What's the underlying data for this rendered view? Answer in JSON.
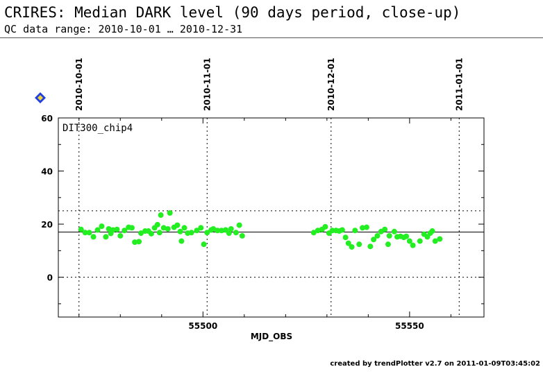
{
  "header": {
    "title": "CRIRES: Median DARK level (90 days period, close-up)",
    "subtitle": "QC data range: 2010-10-01 … 2010-12-31"
  },
  "footer": {
    "text": "created by trendPlotter v2.7 on 2011-01-09T03:45:02"
  },
  "colors": {
    "points": "#22ee22",
    "axes": "#000000",
    "marker": "#1f3fe0",
    "marker_fill": "#f2d23a"
  },
  "icon": "diamond-marker-icon",
  "chart_data": {
    "type": "scatter",
    "xlabel": "MJD_OBS",
    "ylabel": "",
    "xlim": [
      55465.0,
      55568.0
    ],
    "ylim": [
      -15,
      60
    ],
    "yticks": [
      0,
      20,
      40,
      60
    ],
    "xticks": [
      55500.0,
      55550.0
    ],
    "xtick_labels": [
      "55500",
      "55550"
    ],
    "date_markers": [
      {
        "label": "2010-10-01",
        "x": 55470.0
      },
      {
        "label": "2010-11-01",
        "x": 55501.0
      },
      {
        "label": "2010-12-01",
        "x": 55531.0
      },
      {
        "label": "2011-01-01",
        "x": 55562.0
      }
    ],
    "hlines_dotted": [
      25,
      0
    ],
    "hline_solid": 17,
    "series_label": "DIT300_chip4",
    "points": [
      [
        55470.5,
        18
      ],
      [
        55471.5,
        16.8
      ],
      [
        55472.5,
        16.8
      ],
      [
        55473.5,
        15.2
      ],
      [
        55474.5,
        17.8
      ],
      [
        55475.5,
        19.2
      ],
      [
        55476.5,
        15.2
      ],
      [
        55477.2,
        18.2
      ],
      [
        55477.7,
        16.5
      ],
      [
        55478.2,
        17.8
      ],
      [
        55479.2,
        18
      ],
      [
        55480.0,
        15.6
      ],
      [
        55481.0,
        17.6
      ],
      [
        55482.0,
        18.8
      ],
      [
        55482.8,
        18.6
      ],
      [
        55483.5,
        13.2
      ],
      [
        55484.5,
        13.4
      ],
      [
        55485.0,
        16.6
      ],
      [
        55486.0,
        17.4
      ],
      [
        55486.8,
        17.4
      ],
      [
        55487.5,
        16.4
      ],
      [
        55488.3,
        18.6
      ],
      [
        55489.0,
        19.8
      ],
      [
        55489.5,
        16.8
      ],
      [
        55489.8,
        23.4
      ],
      [
        55490.5,
        18.6
      ],
      [
        55491.5,
        18.2
      ],
      [
        55492.0,
        24.2
      ],
      [
        55493.0,
        18.8
      ],
      [
        55493.8,
        19.6
      ],
      [
        55494.5,
        17.2
      ],
      [
        55494.8,
        13.6
      ],
      [
        55495.5,
        18.6
      ],
      [
        55496.3,
        16.6
      ],
      [
        55497.2,
        16.8
      ],
      [
        55498.5,
        17.6
      ],
      [
        55499.5,
        18.6
      ],
      [
        55500.2,
        12.4
      ],
      [
        55501.0,
        16.8
      ],
      [
        55502.0,
        17.8
      ],
      [
        55502.5,
        18.2
      ],
      [
        55503.5,
        17.6
      ],
      [
        55504.5,
        17.6
      ],
      [
        55505.5,
        17.8
      ],
      [
        55506.3,
        16.6
      ],
      [
        55506.8,
        18.2
      ],
      [
        55508.0,
        16.8
      ],
      [
        55508.8,
        19.6
      ],
      [
        55509.5,
        15.6
      ],
      [
        55526.8,
        16.8
      ],
      [
        55527.8,
        17.6
      ],
      [
        55528.8,
        18
      ],
      [
        55529.6,
        19
      ],
      [
        55530.5,
        16.6
      ],
      [
        55531.3,
        17.6
      ],
      [
        55532.2,
        17.6
      ],
      [
        55533.0,
        17.4
      ],
      [
        55533.7,
        17.8
      ],
      [
        55534.5,
        15
      ],
      [
        55535.2,
        12.8
      ],
      [
        55536.0,
        11.4
      ],
      [
        55536.8,
        17.6
      ],
      [
        55537.8,
        12.4
      ],
      [
        55538.6,
        18.6
      ],
      [
        55539.6,
        18.8
      ],
      [
        55540.5,
        11.6
      ],
      [
        55541.3,
        14.2
      ],
      [
        55542.2,
        15.6
      ],
      [
        55543.1,
        17.2
      ],
      [
        55544.0,
        18
      ],
      [
        55544.8,
        12.4
      ],
      [
        55545.1,
        15.6
      ],
      [
        55546.3,
        17.2
      ],
      [
        55547.0,
        15.2
      ],
      [
        55547.8,
        15.4
      ],
      [
        55548.6,
        15
      ],
      [
        55549.2,
        15.4
      ],
      [
        55550.0,
        13.6
      ],
      [
        55550.8,
        12
      ],
      [
        55552.5,
        13.6
      ],
      [
        55553.5,
        16.2
      ],
      [
        55554.3,
        15.2
      ],
      [
        55555.0,
        16.6
      ],
      [
        55555.5,
        17.4
      ],
      [
        55556.2,
        13.6
      ],
      [
        55557.3,
        14.4
      ]
    ]
  }
}
